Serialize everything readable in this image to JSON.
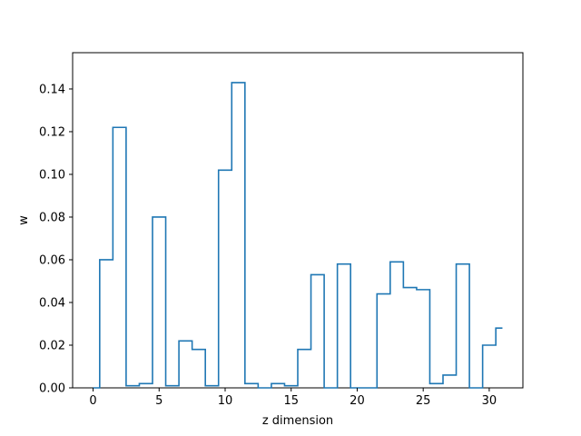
{
  "chart_data": {
    "type": "step",
    "xlabel": "z dimension",
    "ylabel": "w",
    "xlim": [
      -1.55,
      32.55
    ],
    "ylim": [
      0,
      0.157
    ],
    "xticks": [
      0,
      5,
      10,
      15,
      20,
      25,
      30
    ],
    "yticks": [
      0.0,
      0.02,
      0.04,
      0.06,
      0.08,
      0.1,
      0.12,
      0.14
    ],
    "xtick_labels": [
      "0",
      "5",
      "10",
      "15",
      "20",
      "25",
      "30"
    ],
    "ytick_labels": [
      "0.00",
      "0.02",
      "0.04",
      "0.06",
      "0.08",
      "0.10",
      "0.12",
      "0.14"
    ],
    "step_where": "mid",
    "line_color": "#1f77b4",
    "series": [
      {
        "x": [
          0,
          1,
          2,
          3,
          4,
          5,
          6,
          7,
          8,
          9,
          10,
          11,
          12,
          13,
          14,
          15,
          16,
          17,
          18,
          19,
          20,
          21,
          22,
          23,
          24,
          25,
          26,
          27,
          28,
          29,
          30,
          31
        ],
        "values": [
          0.0,
          0.06,
          0.122,
          0.001,
          0.002,
          0.08,
          0.001,
          0.022,
          0.018,
          0.001,
          0.102,
          0.143,
          0.002,
          0.0,
          0.002,
          0.001,
          0.018,
          0.053,
          0.0,
          0.058,
          0.0,
          0.0,
          0.044,
          0.059,
          0.047,
          0.046,
          0.002,
          0.006,
          0.058,
          0.0,
          0.02,
          0.028
        ]
      }
    ]
  }
}
